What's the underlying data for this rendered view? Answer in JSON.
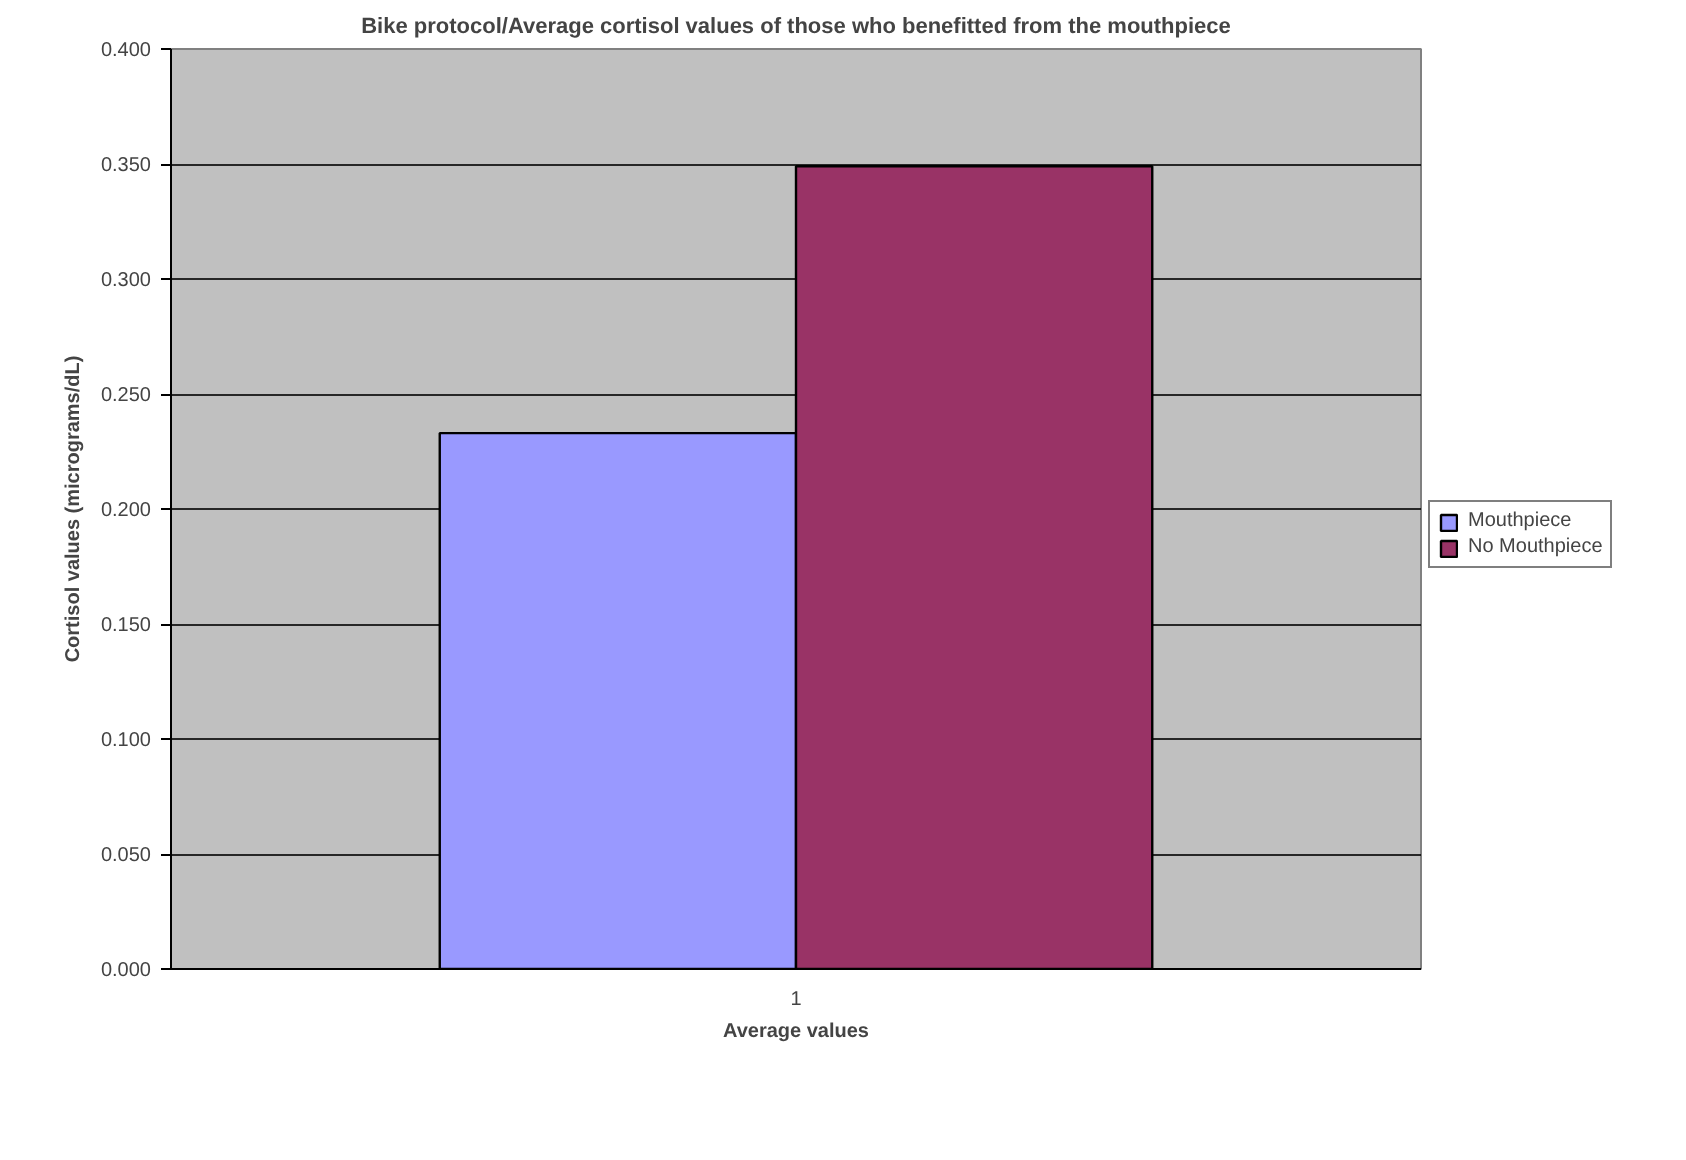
{
  "chart_data": {
    "type": "bar",
    "title": "Bike protocol/Average cortisol values of those who benefitted from the mouthpiece",
    "xlabel": "Average values",
    "ylabel": "Cortisol values (micrograms/dL)",
    "categories": [
      "1"
    ],
    "series": [
      {
        "name": "Mouthpiece",
        "color": "#9999ff",
        "values": [
          0.233
        ]
      },
      {
        "name": "No Mouthpiece",
        "color": "#993366",
        "values": [
          0.349
        ]
      }
    ],
    "ylim": [
      0,
      0.4
    ],
    "yticks": [
      {
        "value": 0,
        "label": "0.000"
      },
      {
        "value": 0.05,
        "label": "0.050"
      },
      {
        "value": 0.1,
        "label": "0.100"
      },
      {
        "value": 0.15,
        "label": "0.150"
      },
      {
        "value": 0.2,
        "label": "0.200"
      },
      {
        "value": 0.25,
        "label": "0.250"
      },
      {
        "value": 0.3,
        "label": "0.300"
      },
      {
        "value": 0.35,
        "label": "0.350"
      },
      {
        "value": 0.4,
        "label": "0.400"
      }
    ],
    "grid": "y",
    "legend": "right"
  }
}
